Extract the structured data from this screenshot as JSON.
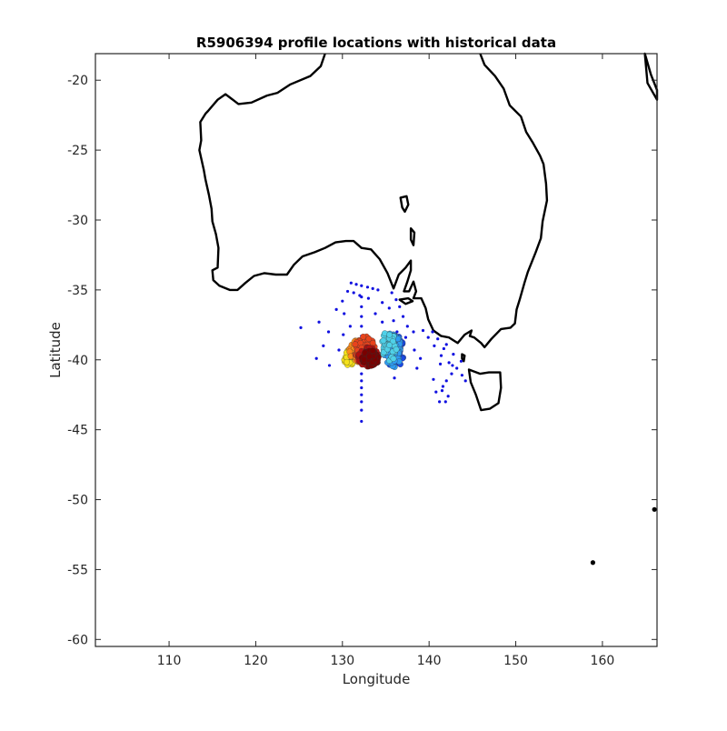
{
  "chart_data": {
    "type": "scatter",
    "title": "R5906394 profile locations with historical data",
    "xlabel": "Longitude",
    "ylabel": "Latitude",
    "xlim": [
      101.5,
      166.3
    ],
    "ylim": [
      -60.5,
      -18.1
    ],
    "x_ticks": [
      "110",
      "120",
      "130",
      "140",
      "150",
      "160"
    ],
    "y_ticks": [
      "-20",
      "-25",
      "-30",
      "-35",
      "-40",
      "-45",
      "-50",
      "-55",
      "-60"
    ],
    "grid": false,
    "legend": "none",
    "coastline_color": "#000000",
    "historical_points": [
      [
        131.0,
        -34.5
      ],
      [
        131.6,
        -34.6
      ],
      [
        132.2,
        -34.7
      ],
      [
        132.9,
        -34.8
      ],
      [
        133.5,
        -34.9
      ],
      [
        134.1,
        -35.0
      ],
      [
        130.6,
        -35.1
      ],
      [
        131.3,
        -35.2
      ],
      [
        132.0,
        -35.4
      ],
      [
        133.0,
        -35.6
      ],
      [
        134.6,
        -35.9
      ],
      [
        135.4,
        -36.3
      ],
      [
        130.0,
        -35.8
      ],
      [
        130.2,
        -36.7
      ],
      [
        129.3,
        -36.4
      ],
      [
        127.3,
        -37.3
      ],
      [
        125.2,
        -37.7
      ],
      [
        128.4,
        -38.0
      ],
      [
        127.8,
        -39.0
      ],
      [
        127.0,
        -39.9
      ],
      [
        128.5,
        -40.4
      ],
      [
        129.6,
        -39.3
      ],
      [
        130.1,
        -38.2
      ],
      [
        130.9,
        -37.6
      ],
      [
        132.2,
        -35.5
      ],
      [
        132.2,
        -36.2
      ],
      [
        132.2,
        -36.9
      ],
      [
        132.2,
        -37.6
      ],
      [
        132.2,
        -38.3
      ],
      [
        132.2,
        -41.0
      ],
      [
        132.2,
        -41.5
      ],
      [
        132.2,
        -42.0
      ],
      [
        132.2,
        -42.5
      ],
      [
        132.2,
        -43.0
      ],
      [
        132.2,
        -43.6
      ],
      [
        132.2,
        -44.4
      ],
      [
        135.7,
        -35.2
      ],
      [
        136.2,
        -35.7
      ],
      [
        136.6,
        -36.2
      ],
      [
        137.0,
        -36.9
      ],
      [
        137.5,
        -37.6
      ],
      [
        138.2,
        -38.0
      ],
      [
        137.3,
        -38.4
      ],
      [
        138.3,
        -39.3
      ],
      [
        139.0,
        -39.9
      ],
      [
        138.6,
        -40.6
      ],
      [
        140.5,
        -41.4
      ],
      [
        140.8,
        -42.3
      ],
      [
        141.2,
        -43.0
      ],
      [
        141.9,
        -43.0
      ],
      [
        141.5,
        -42.2
      ],
      [
        142.0,
        -41.5
      ],
      [
        142.6,
        -41.0
      ],
      [
        143.2,
        -40.6
      ],
      [
        143.8,
        -41.1
      ],
      [
        144.2,
        -41.5
      ],
      [
        142.3,
        -40.2
      ],
      [
        141.4,
        -39.7
      ],
      [
        140.6,
        -39.0
      ],
      [
        139.9,
        -38.4
      ],
      [
        139.3,
        -37.9
      ],
      [
        140.4,
        -38.0
      ],
      [
        141.0,
        -38.5
      ],
      [
        141.7,
        -39.2
      ],
      [
        142.8,
        -39.6
      ],
      [
        143.7,
        -40.1
      ],
      [
        142.0,
        -38.9
      ],
      [
        141.3,
        -40.3
      ],
      [
        142.7,
        -40.4
      ],
      [
        141.6,
        -41.9
      ],
      [
        142.2,
        -42.6
      ],
      [
        136.0,
        -41.3
      ],
      [
        134.6,
        -37.3
      ],
      [
        133.8,
        -36.7
      ],
      [
        135.9,
        -37.2
      ],
      [
        136.3,
        -38.0
      ]
    ],
    "float_clusters": [
      {
        "color": "#1a4ae6",
        "center": [
          136.0,
          -39.4
        ],
        "spread": [
          1.1,
          1.2
        ],
        "count": 60
      },
      {
        "color": "#2f9cf2",
        "center": [
          135.8,
          -39.3
        ],
        "spread": [
          1.0,
          1.3
        ],
        "count": 70
      },
      {
        "color": "#4fd0e8",
        "center": [
          135.4,
          -39.0
        ],
        "spread": [
          0.9,
          1.1
        ],
        "count": 40
      },
      {
        "color": "#f5e11a",
        "center": [
          130.8,
          -39.9
        ],
        "spread": [
          0.6,
          0.6
        ],
        "count": 25
      },
      {
        "color": "#ff8c1a",
        "center": [
          131.8,
          -39.4
        ],
        "spread": [
          1.1,
          0.8
        ],
        "count": 60
      },
      {
        "color": "#e8431c",
        "center": [
          132.6,
          -39.3
        ],
        "spread": [
          1.3,
          1.0
        ],
        "count": 80
      },
      {
        "color": "#b01010",
        "center": [
          133.0,
          -39.8
        ],
        "spread": [
          1.2,
          0.7
        ],
        "count": 90
      },
      {
        "color": "#7a0000",
        "center": [
          133.2,
          -39.9
        ],
        "spread": [
          1.0,
          0.6
        ],
        "count": 70
      }
    ]
  }
}
